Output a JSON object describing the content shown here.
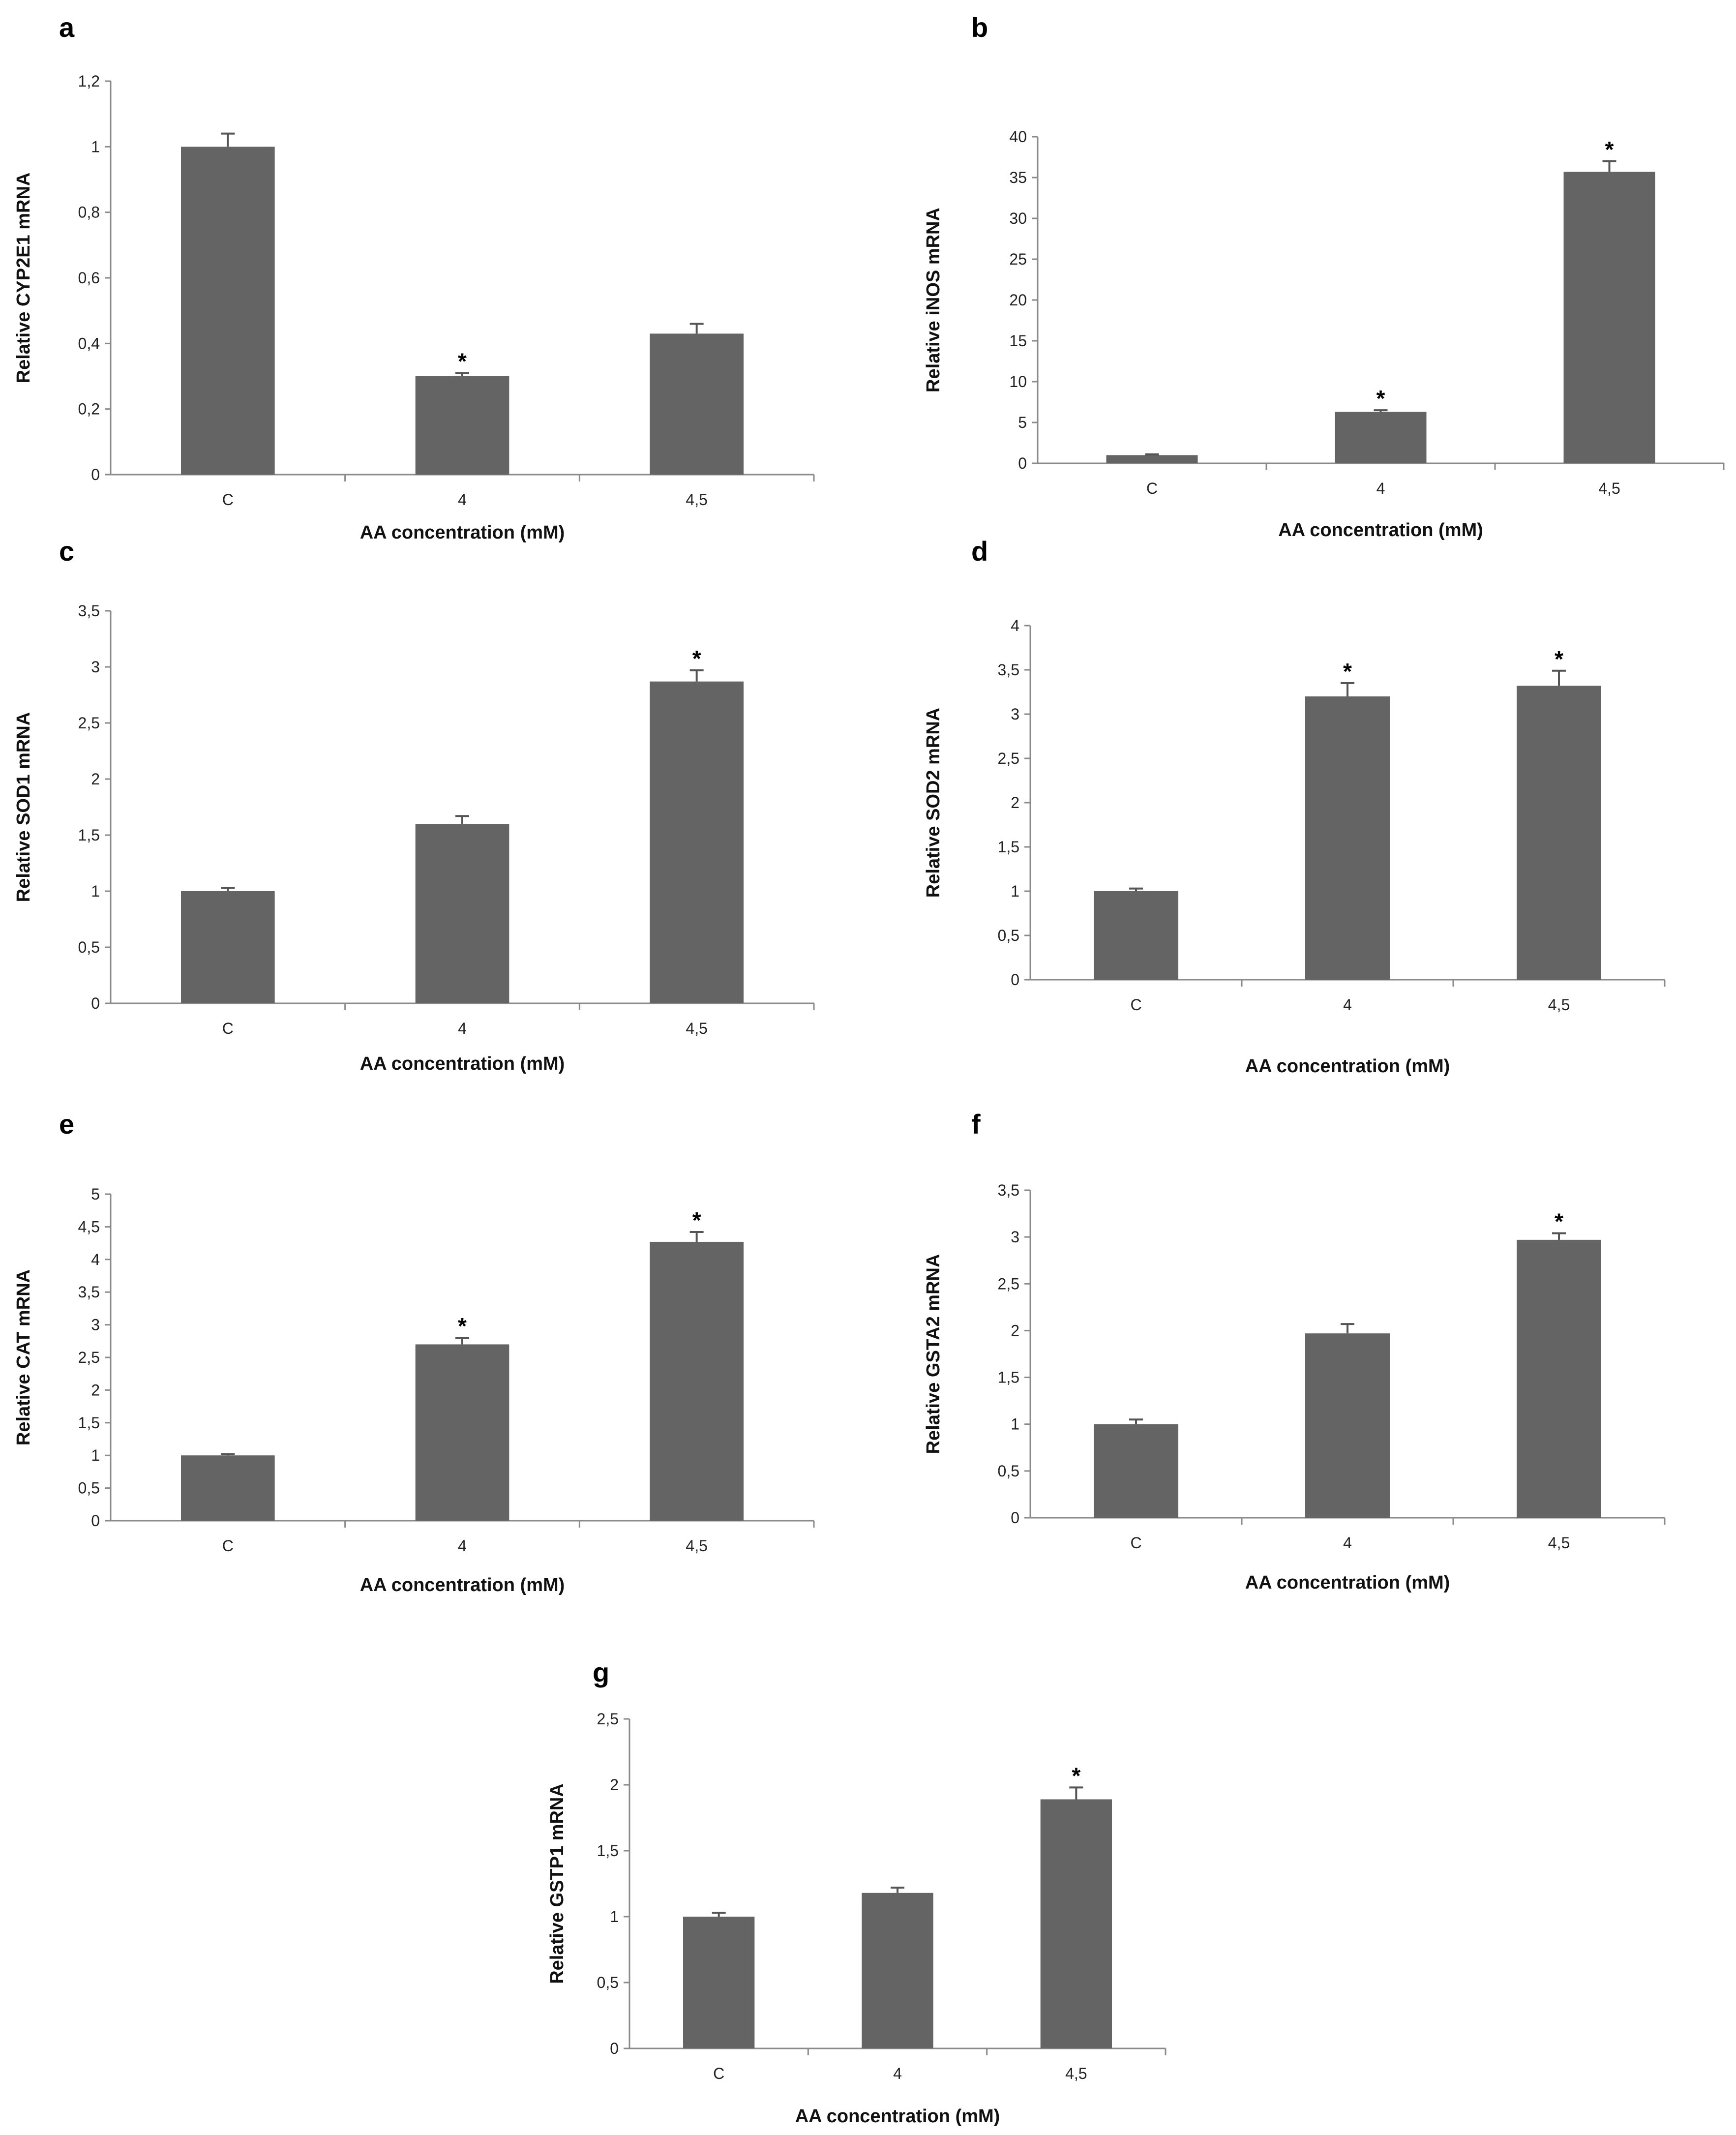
{
  "chart_data": [
    {
      "panel": "a",
      "type": "bar",
      "categories": [
        "C",
        "4",
        "4.5"
      ],
      "category_labels": [
        "C",
        "4",
        "4,5"
      ],
      "values": [
        1.0,
        0.3,
        0.43
      ],
      "errors": [
        0.04,
        0.01,
        0.03
      ],
      "significant": [
        false,
        true,
        false
      ],
      "ylabel": "Relative CYP2E1 mRNA",
      "xlabel": "AA concentration (mM)",
      "ylim": [
        0,
        1.2
      ],
      "yticks": [
        0,
        0.2,
        0.4,
        0.6,
        0.8,
        1,
        1.2
      ],
      "ytick_labels": [
        "0",
        "0,2",
        "0,4",
        "0,6",
        "0,8",
        "1",
        "1,2"
      ],
      "star_label": "*"
    },
    {
      "panel": "b",
      "type": "bar",
      "categories": [
        "C",
        "4",
        "4.5"
      ],
      "category_labels": [
        "C",
        "4",
        "4,5"
      ],
      "values": [
        1.0,
        6.3,
        35.7
      ],
      "errors": [
        0.1,
        0.2,
        1.3
      ],
      "significant": [
        false,
        true,
        true
      ],
      "ylabel": "Relative iNOS mRNA",
      "xlabel": "AA concentration (mM)",
      "ylim": [
        0,
        40
      ],
      "yticks": [
        0,
        5,
        10,
        15,
        20,
        25,
        30,
        35,
        40
      ],
      "ytick_labels": [
        "0",
        "5",
        "10",
        "15",
        "20",
        "25",
        "30",
        "35",
        "40"
      ],
      "star_label": "*"
    },
    {
      "panel": "c",
      "type": "bar",
      "categories": [
        "C",
        "4",
        "4.5"
      ],
      "category_labels": [
        "C",
        "4",
        "4,5"
      ],
      "values": [
        1.0,
        1.6,
        2.87
      ],
      "errors": [
        0.03,
        0.07,
        0.1
      ],
      "significant": [
        false,
        false,
        true
      ],
      "ylabel": "Relative SOD1 mRNA",
      "xlabel": "AA concentration (mM)",
      "ylim": [
        0,
        3.5
      ],
      "yticks": [
        0,
        0.5,
        1,
        1.5,
        2,
        2.5,
        3,
        3.5
      ],
      "ytick_labels": [
        "0",
        "0,5",
        "1",
        "1,5",
        "2",
        "2,5",
        "3",
        "3,5"
      ],
      "star_label": "*"
    },
    {
      "panel": "d",
      "type": "bar",
      "categories": [
        "C",
        "4",
        "4.5"
      ],
      "category_labels": [
        "C",
        "4",
        "4,5"
      ],
      "values": [
        1.0,
        3.2,
        3.32
      ],
      "errors": [
        0.03,
        0.15,
        0.17
      ],
      "significant": [
        false,
        true,
        true
      ],
      "ylabel": "Relative SOD2 mRNA",
      "xlabel": "AA concentration (mM)",
      "ylim": [
        0,
        4
      ],
      "yticks": [
        0,
        0.5,
        1,
        1.5,
        2,
        2.5,
        3,
        3.5,
        4
      ],
      "ytick_labels": [
        "0",
        "0,5",
        "1",
        "1,5",
        "2",
        "2,5",
        "3",
        "3,5",
        "4"
      ],
      "star_label": "*"
    },
    {
      "panel": "e",
      "type": "bar",
      "categories": [
        "C",
        "4",
        "4.5"
      ],
      "category_labels": [
        "C",
        "4",
        "4,5"
      ],
      "values": [
        1.0,
        2.7,
        4.27
      ],
      "errors": [
        0.02,
        0.1,
        0.15
      ],
      "significant": [
        false,
        true,
        true
      ],
      "ylabel": "Relative CAT mRNA",
      "xlabel": "AA concentration (mM)",
      "ylim": [
        0,
        5
      ],
      "yticks": [
        0,
        0.5,
        1,
        1.5,
        2,
        2.5,
        3,
        3.5,
        4,
        4.5,
        5
      ],
      "ytick_labels": [
        "0",
        "0,5",
        "1",
        "1,5",
        "2",
        "2,5",
        "3",
        "3,5",
        "4",
        "4,5",
        "5"
      ],
      "star_label": "*"
    },
    {
      "panel": "f",
      "type": "bar",
      "categories": [
        "C",
        "4",
        "4.5"
      ],
      "category_labels": [
        "C",
        "4",
        "4,5"
      ],
      "values": [
        1.0,
        1.97,
        2.97
      ],
      "errors": [
        0.05,
        0.1,
        0.07
      ],
      "significant": [
        false,
        false,
        true
      ],
      "ylabel": "Relative GSTA2 mRNA",
      "xlabel": "AA concentration (mM)",
      "ylim": [
        0,
        3.5
      ],
      "yticks": [
        0,
        0.5,
        1,
        1.5,
        2,
        2.5,
        3,
        3.5
      ],
      "ytick_labels": [
        "0",
        "0,5",
        "1",
        "1,5",
        "2",
        "2,5",
        "3",
        "3,5"
      ],
      "star_label": "*"
    },
    {
      "panel": "g",
      "type": "bar",
      "categories": [
        "C",
        "4",
        "4.5"
      ],
      "category_labels": [
        "C",
        "4",
        "4,5"
      ],
      "values": [
        1.0,
        1.18,
        1.89
      ],
      "errors": [
        0.03,
        0.04,
        0.09
      ],
      "significant": [
        false,
        false,
        true
      ],
      "ylabel": "Relative GSTP1 mRNA",
      "xlabel": "AA concentration (mM)",
      "ylim": [
        0,
        2.5
      ],
      "yticks": [
        0,
        0.5,
        1,
        1.5,
        2,
        2.5
      ],
      "ytick_labels": [
        "0",
        "0,5",
        "1",
        "1,5",
        "2",
        "2,5"
      ],
      "star_label": "*"
    }
  ],
  "colors": {
    "bar": "#646464",
    "axis": "#8a8a8a",
    "text": "#111111"
  }
}
